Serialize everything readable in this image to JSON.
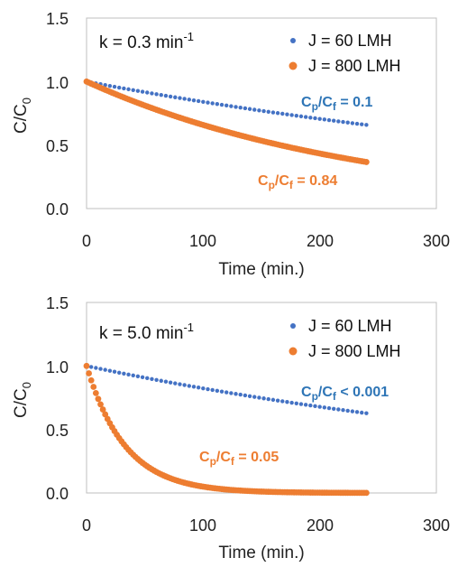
{
  "colors": {
    "series1": "#4472C4",
    "series2": "#ED7D31",
    "label_blue": "#2E75B6",
    "label_orange": "#ED7D31"
  },
  "chart_data": [
    {
      "type": "scatter",
      "annotation": {
        "base": "k = 0.3 min",
        "sup": "-1"
      },
      "xlabel": "Time (min.)",
      "ylabel": {
        "base": "C/C",
        "sub": "0"
      },
      "xlim": [
        0,
        300
      ],
      "ylim": [
        0,
        1.5
      ],
      "xticks": [
        "0",
        "100",
        "200",
        "300"
      ],
      "yticks": [
        "0.0",
        "0.5",
        "1.0",
        "1.5"
      ],
      "legend_position": "top-right",
      "series": [
        {
          "name": "J = 60 LMH",
          "decay_k": 0.00174,
          "x_start": 0,
          "x_end": 240,
          "y0": 1.0
        },
        {
          "name": "J = 800 LMH",
          "decay_k": 0.00418,
          "x_start": 0,
          "x_end": 240,
          "y0": 1.0
        }
      ],
      "series_labels": [
        {
          "base": "C",
          "sub1": "p",
          "mid": "/C",
          "sub2": "f",
          "tail": " = 0.1"
        },
        {
          "base": "C",
          "sub1": "p",
          "mid": "/C",
          "sub2": "f",
          "tail": " = 0.84"
        }
      ]
    },
    {
      "type": "scatter",
      "annotation": {
        "base": "k = 5.0 min",
        "sup": "-1"
      },
      "xlabel": "Time (min.)",
      "ylabel": {
        "base": "C/C",
        "sub": "0"
      },
      "xlim": [
        0,
        300
      ],
      "ylim": [
        0,
        1.5
      ],
      "xticks": [
        "0",
        "100",
        "200",
        "300"
      ],
      "yticks": [
        "0.0",
        "0.5",
        "1.0",
        "1.5"
      ],
      "legend_position": "top-right",
      "series": [
        {
          "name": "J = 60 LMH",
          "decay_k": 0.00194,
          "x_start": 0,
          "x_end": 240,
          "y0": 1.0
        },
        {
          "name": "J = 800 LMH",
          "decay_k": 0.03,
          "x_start": 0,
          "x_end": 240,
          "y0": 1.0
        }
      ],
      "series_labels": [
        {
          "base": "C",
          "sub1": "p",
          "mid": "/C",
          "sub2": "f",
          "tail": " < 0.001"
        },
        {
          "base": "C",
          "sub1": "p",
          "mid": "/C",
          "sub2": "f",
          "tail": " = 0.05"
        }
      ]
    }
  ]
}
